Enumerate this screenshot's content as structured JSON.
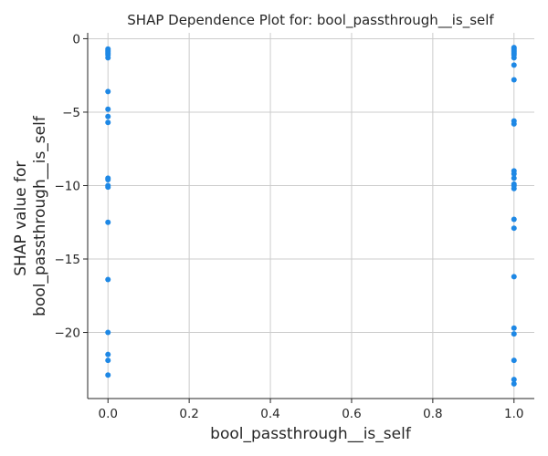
{
  "chart_data": {
    "type": "scatter",
    "title": "SHAP Dependence Plot for: bool_passthrough__is_self",
    "xlabel": "bool_passthrough__is_self",
    "ylabel": [
      "SHAP value for",
      "bool_passthrough__is_self"
    ],
    "xlim": [
      -0.05,
      1.05
    ],
    "ylim": [
      -24.5,
      0.4
    ],
    "xticks": [
      0.0,
      0.2,
      0.4,
      0.6,
      0.8,
      1.0
    ],
    "xtick_labels": [
      "0.0",
      "0.2",
      "0.4",
      "0.6",
      "0.8",
      "1.0"
    ],
    "yticks": [
      0,
      -5,
      -10,
      -15,
      -20
    ],
    "ytick_labels": [
      "0",
      "−5",
      "−10",
      "−15",
      "−20"
    ],
    "grid": true,
    "point_color": "#1e88e5",
    "series": [
      {
        "points": [
          {
            "x": 0,
            "y": -0.7
          },
          {
            "x": 0,
            "y": -0.8
          },
          {
            "x": 0,
            "y": -0.9
          },
          {
            "x": 0,
            "y": -1.0
          },
          {
            "x": 0,
            "y": -1.1
          },
          {
            "x": 0,
            "y": -1.3
          },
          {
            "x": 0,
            "y": -3.6
          },
          {
            "x": 0,
            "y": -4.8
          },
          {
            "x": 0,
            "y": -5.3
          },
          {
            "x": 0,
            "y": -5.7
          },
          {
            "x": 0,
            "y": -9.5
          },
          {
            "x": 0,
            "y": -9.6
          },
          {
            "x": 0,
            "y": -10.0
          },
          {
            "x": 0,
            "y": -10.1
          },
          {
            "x": 0,
            "y": -12.5
          },
          {
            "x": 0,
            "y": -16.4
          },
          {
            "x": 0,
            "y": -20.0
          },
          {
            "x": 0,
            "y": -21.5
          },
          {
            "x": 0,
            "y": -21.9
          },
          {
            "x": 0,
            "y": -22.9
          },
          {
            "x": 1,
            "y": -0.6
          },
          {
            "x": 1,
            "y": -0.7
          },
          {
            "x": 1,
            "y": -0.8
          },
          {
            "x": 1,
            "y": -0.9
          },
          {
            "x": 1,
            "y": -1.0
          },
          {
            "x": 1,
            "y": -1.1
          },
          {
            "x": 1,
            "y": -1.3
          },
          {
            "x": 1,
            "y": -1.8
          },
          {
            "x": 1,
            "y": -2.8
          },
          {
            "x": 1,
            "y": -5.6
          },
          {
            "x": 1,
            "y": -5.8
          },
          {
            "x": 1,
            "y": -9.0
          },
          {
            "x": 1,
            "y": -9.2
          },
          {
            "x": 1,
            "y": -9.5
          },
          {
            "x": 1,
            "y": -9.9
          },
          {
            "x": 1,
            "y": -10.0
          },
          {
            "x": 1,
            "y": -10.2
          },
          {
            "x": 1,
            "y": -12.3
          },
          {
            "x": 1,
            "y": -12.9
          },
          {
            "x": 1,
            "y": -16.2
          },
          {
            "x": 1,
            "y": -19.7
          },
          {
            "x": 1,
            "y": -20.1
          },
          {
            "x": 1,
            "y": -21.9
          },
          {
            "x": 1,
            "y": -23.2
          },
          {
            "x": 1,
            "y": -23.5
          }
        ]
      }
    ]
  }
}
